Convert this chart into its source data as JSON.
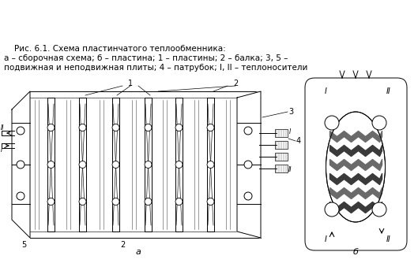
{
  "fig_width": 5.29,
  "fig_height": 3.34,
  "dpi": 100,
  "bg_color": "#ffffff",
  "line_color": "#000000",
  "label_a": "а",
  "label_b": "б",
  "caption_line1": "Рис. 6.1. Схема пластинчатого теплообменника:",
  "caption_line2": "а – сборочная схема; б – пластина; 1 – пластины; 2 – балка; 3, 5 –",
  "caption_line3": "подвижная и неподвижная плиты; 4 – патрубок; I, II – теплоносители",
  "num1": "1",
  "num2": "2",
  "num3": "3",
  "num4": "4",
  "num5": "5"
}
